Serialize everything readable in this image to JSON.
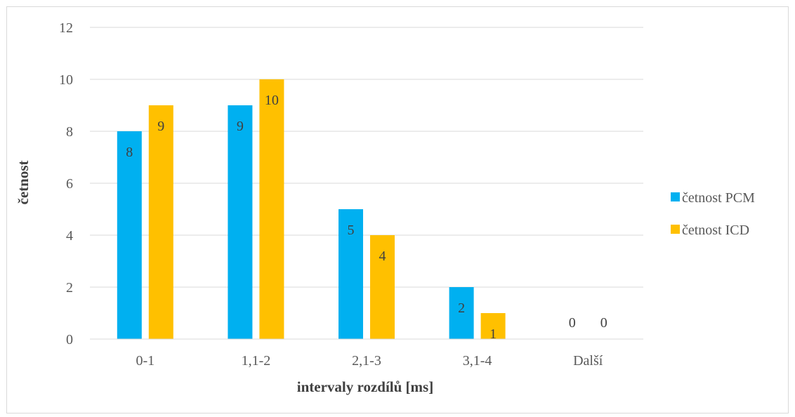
{
  "chart_data": {
    "type": "bar",
    "title": "",
    "xlabel": "intervaly rozdílů [ms]",
    "ylabel": "četnost",
    "categories": [
      "0-1",
      "1,1-2",
      "2,1-3",
      "3,1-4",
      "Další"
    ],
    "series": [
      {
        "name": "četnost PCM",
        "values": [
          8,
          9,
          5,
          2,
          0
        ],
        "color": "#00B0F0"
      },
      {
        "name": "četnost ICD",
        "values": [
          9,
          10,
          4,
          1,
          0
        ],
        "color": "#FFC000"
      }
    ],
    "ylim": [
      0,
      12
    ],
    "yticks": [
      0,
      2,
      4,
      6,
      8,
      10,
      12
    ],
    "grid": true,
    "legend_position": "right",
    "data_labels": true
  }
}
